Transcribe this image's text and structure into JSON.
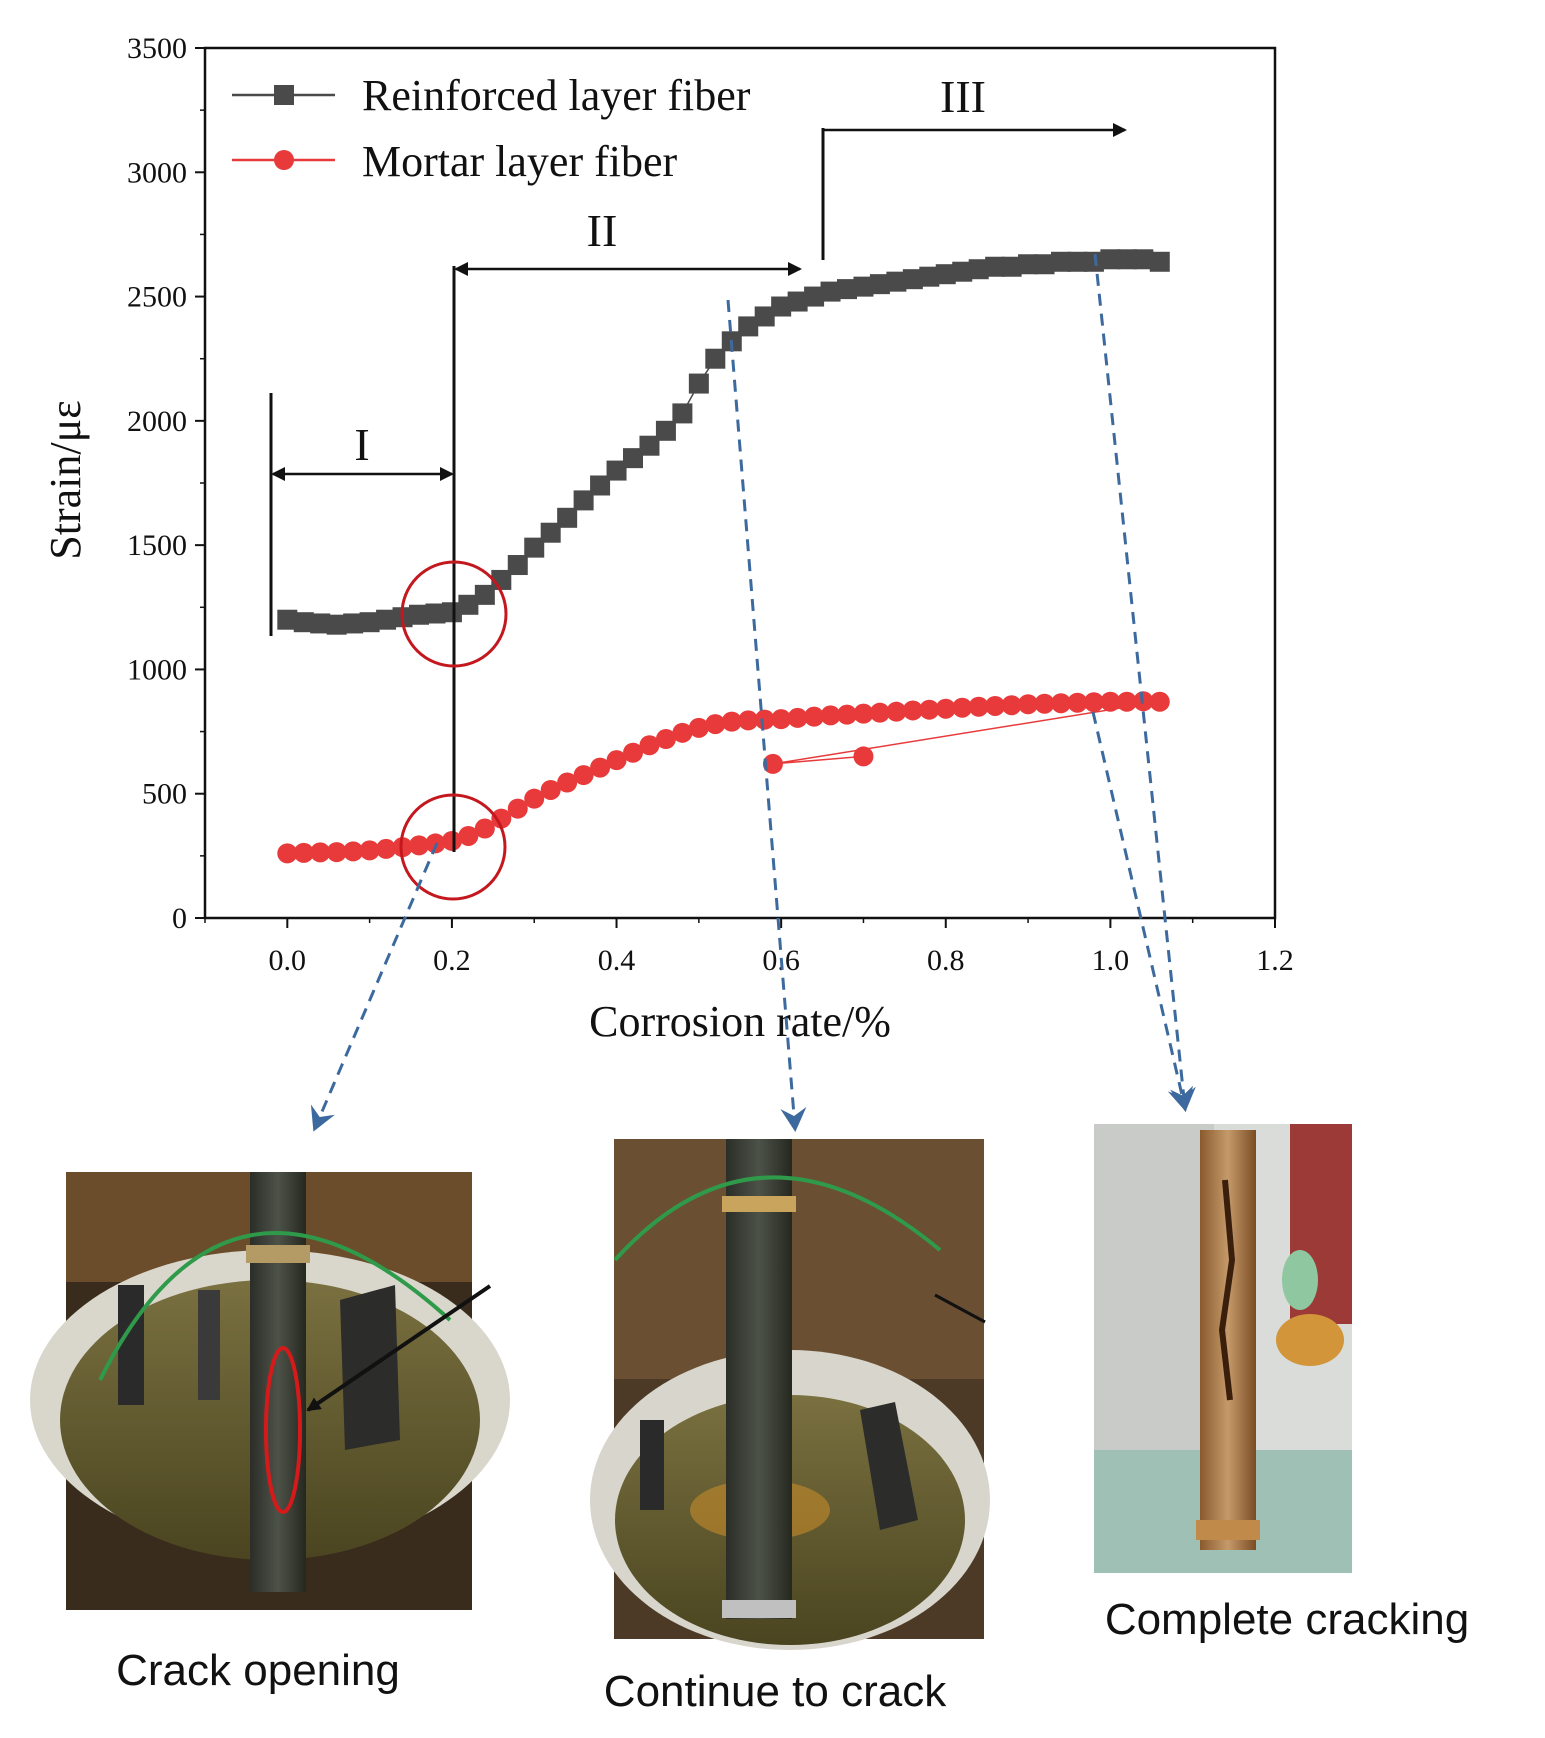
{
  "chart_data": {
    "type": "scatter",
    "xlabel": "Corrosion rate/%",
    "ylabel": "Strain/με",
    "xlim": [
      -0.1,
      1.2
    ],
    "ylim": [
      0,
      3500
    ],
    "x_ticks": [
      "0.0",
      "0.2",
      "0.4",
      "0.6",
      "0.8",
      "1.0",
      "1.2"
    ],
    "y_ticks": [
      "0",
      "500",
      "1000",
      "1500",
      "2000",
      "2500",
      "3000",
      "3500"
    ],
    "legend_position": "top-left",
    "series": [
      {
        "name": "Reinforced layer fiber",
        "color": "#4a4a4a",
        "marker": "square",
        "points": [
          [
            0.0,
            1200
          ],
          [
            0.02,
            1190
          ],
          [
            0.04,
            1185
          ],
          [
            0.06,
            1180
          ],
          [
            0.08,
            1185
          ],
          [
            0.1,
            1190
          ],
          [
            0.12,
            1200
          ],
          [
            0.14,
            1210
          ],
          [
            0.16,
            1220
          ],
          [
            0.18,
            1225
          ],
          [
            0.2,
            1230
          ],
          [
            0.22,
            1260
          ],
          [
            0.24,
            1300
          ],
          [
            0.26,
            1360
          ],
          [
            0.28,
            1420
          ],
          [
            0.3,
            1490
          ],
          [
            0.32,
            1550
          ],
          [
            0.34,
            1610
          ],
          [
            0.36,
            1680
          ],
          [
            0.38,
            1740
          ],
          [
            0.4,
            1800
          ],
          [
            0.42,
            1850
          ],
          [
            0.44,
            1900
          ],
          [
            0.46,
            1960
          ],
          [
            0.48,
            2030
          ],
          [
            0.5,
            2150
          ],
          [
            0.52,
            2250
          ],
          [
            0.54,
            2320
          ],
          [
            0.56,
            2380
          ],
          [
            0.58,
            2420
          ],
          [
            0.6,
            2460
          ],
          [
            0.62,
            2480
          ],
          [
            0.64,
            2500
          ],
          [
            0.66,
            2520
          ],
          [
            0.68,
            2530
          ],
          [
            0.7,
            2540
          ],
          [
            0.72,
            2550
          ],
          [
            0.74,
            2560
          ],
          [
            0.76,
            2570
          ],
          [
            0.78,
            2580
          ],
          [
            0.8,
            2590
          ],
          [
            0.82,
            2600
          ],
          [
            0.84,
            2610
          ],
          [
            0.86,
            2620
          ],
          [
            0.88,
            2620
          ],
          [
            0.9,
            2630
          ],
          [
            0.92,
            2630
          ],
          [
            0.94,
            2640
          ],
          [
            0.96,
            2640
          ],
          [
            0.98,
            2640
          ],
          [
            1.0,
            2650
          ],
          [
            1.02,
            2650
          ],
          [
            1.04,
            2650
          ],
          [
            1.06,
            2640
          ]
        ]
      },
      {
        "name": "Mortar layer fiber",
        "color": "#e83a3a",
        "marker": "circle",
        "points": [
          [
            0.0,
            260
          ],
          [
            0.02,
            262
          ],
          [
            0.04,
            264
          ],
          [
            0.06,
            265
          ],
          [
            0.08,
            268
          ],
          [
            0.1,
            272
          ],
          [
            0.12,
            278
          ],
          [
            0.14,
            285
          ],
          [
            0.16,
            292
          ],
          [
            0.18,
            300
          ],
          [
            0.2,
            310
          ],
          [
            0.22,
            330
          ],
          [
            0.24,
            360
          ],
          [
            0.26,
            400
          ],
          [
            0.28,
            440
          ],
          [
            0.3,
            480
          ],
          [
            0.32,
            515
          ],
          [
            0.34,
            545
          ],
          [
            0.36,
            575
          ],
          [
            0.38,
            605
          ],
          [
            0.4,
            635
          ],
          [
            0.42,
            665
          ],
          [
            0.44,
            695
          ],
          [
            0.46,
            720
          ],
          [
            0.48,
            745
          ],
          [
            0.5,
            765
          ],
          [
            0.52,
            780
          ],
          [
            0.54,
            790
          ],
          [
            0.56,
            795
          ],
          [
            0.58,
            798
          ],
          [
            0.6,
            800
          ],
          [
            0.62,
            805
          ],
          [
            0.64,
            810
          ],
          [
            0.66,
            815
          ],
          [
            0.68,
            818
          ],
          [
            0.7,
            822
          ],
          [
            0.72,
            826
          ],
          [
            0.74,
            830
          ],
          [
            0.76,
            835
          ],
          [
            0.78,
            838
          ],
          [
            0.8,
            842
          ],
          [
            0.82,
            846
          ],
          [
            0.84,
            850
          ],
          [
            0.86,
            853
          ],
          [
            0.88,
            856
          ],
          [
            0.9,
            860
          ],
          [
            0.92,
            862
          ],
          [
            0.94,
            864
          ],
          [
            0.96,
            866
          ],
          [
            0.98,
            868
          ],
          [
            1.0,
            870
          ],
          [
            1.02,
            870
          ],
          [
            1.04,
            872
          ],
          [
            1.06,
            870
          ],
          [
            0.59,
            620
          ],
          [
            0.7,
            650
          ]
        ]
      }
    ],
    "annotations": {
      "stages": [
        "I",
        "II",
        "III"
      ]
    }
  },
  "photos": {
    "captions": [
      "Crack opening",
      "Continue to crack",
      "Complete cracking"
    ]
  }
}
